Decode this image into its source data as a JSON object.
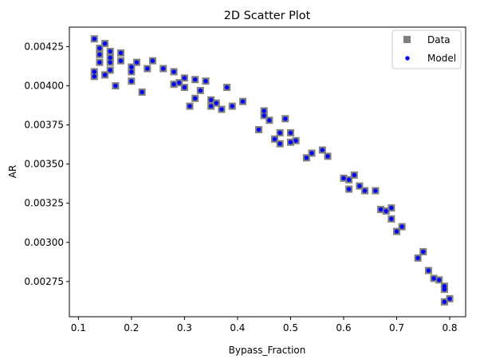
{
  "chart_data": {
    "type": "scatter",
    "title": "2D Scatter Plot",
    "xlabel": "Bypass_Fraction",
    "ylabel": "AR",
    "xlim": [
      0.083,
      0.83
    ],
    "ylim": [
      0.002525,
      0.004375
    ],
    "xticks": [
      0.1,
      0.2,
      0.3,
      0.4,
      0.5,
      0.6,
      0.7,
      0.8
    ],
    "xtick_labels": [
      "0.1",
      "0.2",
      "0.3",
      "0.4",
      "0.5",
      "0.6",
      "0.7",
      "0.8"
    ],
    "yticks": [
      0.00275,
      0.003,
      0.00325,
      0.0035,
      0.00375,
      0.004,
      0.00425
    ],
    "ytick_labels": [
      "0.00275",
      "0.00300",
      "0.00325",
      "0.00350",
      "0.00375",
      "0.00400",
      "0.00425"
    ],
    "grid": false,
    "legend_position": "top-right",
    "colors": {
      "data": "#7f7f7f",
      "model": "#0000ff",
      "axes": "#000000"
    },
    "series": [
      {
        "name": "Data",
        "marker": "square",
        "points": [
          [
            0.13,
            0.0043
          ],
          [
            0.15,
            0.00427
          ],
          [
            0.14,
            0.00424
          ],
          [
            0.16,
            0.00422
          ],
          [
            0.18,
            0.00421
          ],
          [
            0.14,
            0.0042
          ],
          [
            0.16,
            0.00418
          ],
          [
            0.14,
            0.00415
          ],
          [
            0.16,
            0.00415
          ],
          [
            0.18,
            0.00416
          ],
          [
            0.21,
            0.00415
          ],
          [
            0.24,
            0.00416
          ],
          [
            0.2,
            0.00412
          ],
          [
            0.23,
            0.00411
          ],
          [
            0.26,
            0.00411
          ],
          [
            0.16,
            0.0041
          ],
          [
            0.13,
            0.00409
          ],
          [
            0.2,
            0.00409
          ],
          [
            0.28,
            0.00409
          ],
          [
            0.13,
            0.00406
          ],
          [
            0.15,
            0.00407
          ],
          [
            0.3,
            0.00405
          ],
          [
            0.32,
            0.00404
          ],
          [
            0.34,
            0.00403
          ],
          [
            0.29,
            0.00402
          ],
          [
            0.28,
            0.00401
          ],
          [
            0.17,
            0.004
          ],
          [
            0.2,
            0.00403
          ],
          [
            0.3,
            0.00399
          ],
          [
            0.38,
            0.00399
          ],
          [
            0.33,
            0.00397
          ],
          [
            0.22,
            0.00396
          ],
          [
            0.32,
            0.00392
          ],
          [
            0.35,
            0.00391
          ],
          [
            0.36,
            0.00389
          ],
          [
            0.41,
            0.0039
          ],
          [
            0.35,
            0.00387
          ],
          [
            0.31,
            0.00387
          ],
          [
            0.39,
            0.00387
          ],
          [
            0.37,
            0.00385
          ],
          [
            0.45,
            0.00384
          ],
          [
            0.45,
            0.00381
          ],
          [
            0.49,
            0.00379
          ],
          [
            0.46,
            0.00378
          ],
          [
            0.44,
            0.00372
          ],
          [
            0.5,
            0.0037
          ],
          [
            0.48,
            0.0037
          ],
          [
            0.47,
            0.00366
          ],
          [
            0.51,
            0.00365
          ],
          [
            0.5,
            0.00364
          ],
          [
            0.48,
            0.00363
          ],
          [
            0.56,
            0.00359
          ],
          [
            0.54,
            0.00357
          ],
          [
            0.57,
            0.00355
          ],
          [
            0.53,
            0.00354
          ],
          [
            0.62,
            0.00343
          ],
          [
            0.6,
            0.00341
          ],
          [
            0.61,
            0.0034
          ],
          [
            0.63,
            0.00336
          ],
          [
            0.61,
            0.00334
          ],
          [
            0.64,
            0.00333
          ],
          [
            0.66,
            0.00333
          ],
          [
            0.67,
            0.00321
          ],
          [
            0.69,
            0.00322
          ],
          [
            0.68,
            0.0032
          ],
          [
            0.69,
            0.00315
          ],
          [
            0.71,
            0.0031
          ],
          [
            0.7,
            0.00307
          ],
          [
            0.75,
            0.00294
          ],
          [
            0.74,
            0.0029
          ],
          [
            0.76,
            0.00282
          ],
          [
            0.77,
            0.00277
          ],
          [
            0.78,
            0.00276
          ],
          [
            0.79,
            0.00272
          ],
          [
            0.79,
            0.0027
          ],
          [
            0.8,
            0.00264
          ],
          [
            0.79,
            0.00262
          ]
        ]
      },
      {
        "name": "Model",
        "marker": "circle",
        "points": [
          [
            0.13,
            0.0043
          ],
          [
            0.15,
            0.00427
          ],
          [
            0.14,
            0.00424
          ],
          [
            0.16,
            0.00422
          ],
          [
            0.18,
            0.00421
          ],
          [
            0.14,
            0.0042
          ],
          [
            0.16,
            0.00418
          ],
          [
            0.14,
            0.00415
          ],
          [
            0.16,
            0.00415
          ],
          [
            0.18,
            0.00416
          ],
          [
            0.21,
            0.00415
          ],
          [
            0.24,
            0.00416
          ],
          [
            0.2,
            0.00412
          ],
          [
            0.23,
            0.00411
          ],
          [
            0.26,
            0.00411
          ],
          [
            0.16,
            0.0041
          ],
          [
            0.13,
            0.00409
          ],
          [
            0.2,
            0.00409
          ],
          [
            0.28,
            0.00409
          ],
          [
            0.13,
            0.00406
          ],
          [
            0.15,
            0.00407
          ],
          [
            0.3,
            0.00405
          ],
          [
            0.32,
            0.00404
          ],
          [
            0.34,
            0.00403
          ],
          [
            0.29,
            0.00402
          ],
          [
            0.28,
            0.00401
          ],
          [
            0.17,
            0.004
          ],
          [
            0.2,
            0.00403
          ],
          [
            0.3,
            0.00399
          ],
          [
            0.38,
            0.00399
          ],
          [
            0.33,
            0.00397
          ],
          [
            0.22,
            0.00396
          ],
          [
            0.32,
            0.00392
          ],
          [
            0.35,
            0.00391
          ],
          [
            0.36,
            0.00389
          ],
          [
            0.41,
            0.0039
          ],
          [
            0.35,
            0.00387
          ],
          [
            0.31,
            0.00387
          ],
          [
            0.39,
            0.00387
          ],
          [
            0.37,
            0.00385
          ],
          [
            0.45,
            0.00384
          ],
          [
            0.45,
            0.00381
          ],
          [
            0.49,
            0.00379
          ],
          [
            0.46,
            0.00378
          ],
          [
            0.44,
            0.00372
          ],
          [
            0.5,
            0.0037
          ],
          [
            0.48,
            0.0037
          ],
          [
            0.47,
            0.00366
          ],
          [
            0.51,
            0.00365
          ],
          [
            0.5,
            0.00364
          ],
          [
            0.48,
            0.00363
          ],
          [
            0.56,
            0.00359
          ],
          [
            0.54,
            0.00357
          ],
          [
            0.57,
            0.00355
          ],
          [
            0.53,
            0.00354
          ],
          [
            0.62,
            0.00343
          ],
          [
            0.6,
            0.00341
          ],
          [
            0.61,
            0.0034
          ],
          [
            0.63,
            0.00336
          ],
          [
            0.61,
            0.00334
          ],
          [
            0.64,
            0.00333
          ],
          [
            0.66,
            0.00333
          ],
          [
            0.67,
            0.00321
          ],
          [
            0.69,
            0.00322
          ],
          [
            0.68,
            0.0032
          ],
          [
            0.69,
            0.00315
          ],
          [
            0.71,
            0.0031
          ],
          [
            0.7,
            0.00307
          ],
          [
            0.75,
            0.00294
          ],
          [
            0.74,
            0.0029
          ],
          [
            0.76,
            0.00282
          ],
          [
            0.77,
            0.00277
          ],
          [
            0.78,
            0.00276
          ],
          [
            0.79,
            0.00272
          ],
          [
            0.79,
            0.0027
          ],
          [
            0.8,
            0.00264
          ],
          [
            0.79,
            0.00262
          ]
        ]
      }
    ]
  }
}
